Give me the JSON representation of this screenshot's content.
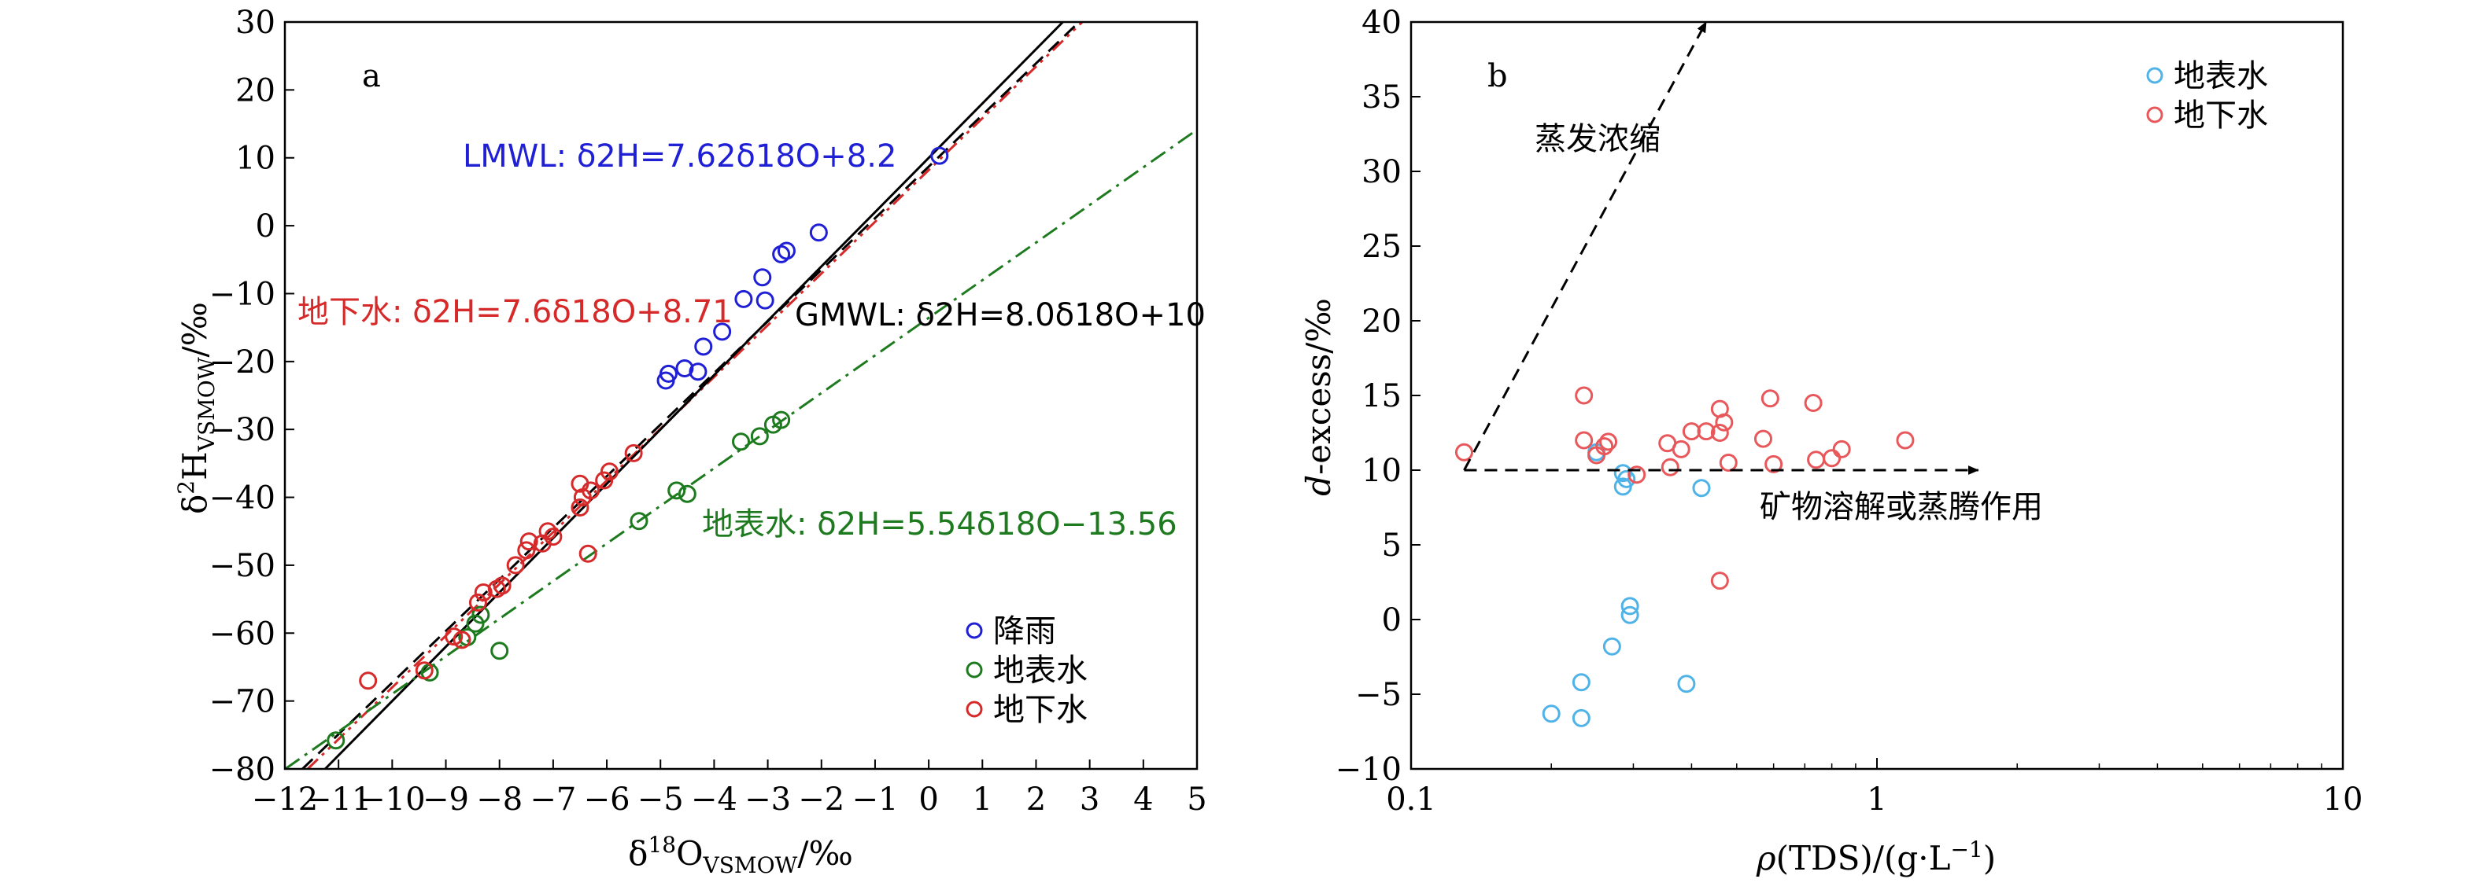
{
  "chart_data": [
    {
      "type": "scatter",
      "panel_label": "a",
      "xlabel": "δ18OVSMOW/‰",
      "ylabel": "δ2HVSMOW/‰",
      "xlim": [
        -12,
        5
      ],
      "ylim": [
        -80,
        30
      ],
      "xticks": [
        -12,
        -11,
        -10,
        -9,
        -8,
        -7,
        -6,
        -5,
        -4,
        -3,
        -2,
        -1,
        0,
        1,
        2,
        3,
        4,
        5
      ],
      "yticks": [
        -80,
        -70,
        -60,
        -50,
        -40,
        -30,
        -20,
        -10,
        0,
        10,
        20,
        30
      ],
      "legend_position": "bottom-right",
      "series": [
        {
          "name": "降雨",
          "color": "#1f1fd6",
          "points": [
            [
              -4.9,
              -22.8
            ],
            [
              -4.85,
              -21.8
            ],
            [
              -4.55,
              -21.0
            ],
            [
              -4.3,
              -21.5
            ],
            [
              -4.2,
              -17.8
            ],
            [
              -3.85,
              -15.6
            ],
            [
              -3.45,
              -10.8
            ],
            [
              -3.1,
              -7.6
            ],
            [
              -3.05,
              -11.0
            ],
            [
              -2.75,
              -4.2
            ],
            [
              -2.65,
              -3.7
            ],
            [
              -2.05,
              -1.0
            ],
            [
              0.2,
              10.3
            ]
          ]
        },
        {
          "name": "地表水",
          "color": "#1e7a1e",
          "points": [
            [
              -11.05,
              -75.8
            ],
            [
              -9.3,
              -65.8
            ],
            [
              -8.6,
              -60.6
            ],
            [
              -8.45,
              -58.6
            ],
            [
              -8.35,
              -57.3
            ],
            [
              -8.0,
              -62.6
            ],
            [
              -5.4,
              -43.5
            ],
            [
              -4.7,
              -39.0
            ],
            [
              -4.5,
              -39.5
            ],
            [
              -3.5,
              -31.8
            ],
            [
              -3.15,
              -31.0
            ],
            [
              -2.9,
              -29.3
            ],
            [
              -2.75,
              -28.6
            ]
          ]
        },
        {
          "name": "地下水",
          "color": "#d62a2a",
          "points": [
            [
              -10.45,
              -67.0
            ],
            [
              -9.4,
              -65.5
            ],
            [
              -8.85,
              -60.5
            ],
            [
              -8.7,
              -61.0
            ],
            [
              -8.4,
              -55.5
            ],
            [
              -8.3,
              -54.0
            ],
            [
              -8.05,
              -53.5
            ],
            [
              -7.95,
              -53.0
            ],
            [
              -7.7,
              -50.0
            ],
            [
              -7.5,
              -47.8
            ],
            [
              -7.45,
              -46.5
            ],
            [
              -7.2,
              -46.8
            ],
            [
              -7.1,
              -45.0
            ],
            [
              -7.0,
              -45.8
            ],
            [
              -6.5,
              -41.5
            ],
            [
              -6.5,
              -38.0
            ],
            [
              -6.45,
              -40.0
            ],
            [
              -6.35,
              -48.3
            ],
            [
              -6.3,
              -39.0
            ],
            [
              -6.05,
              -37.5
            ],
            [
              -5.95,
              -36.2
            ],
            [
              -5.5,
              -33.5
            ]
          ]
        }
      ],
      "lines": [
        {
          "label": "LMWL: δ2H=7.62δ18O+8.2",
          "slope": 7.62,
          "intercept": 8.2,
          "color": "#d62a2a",
          "style": "dashdotdot",
          "label_color": "#1f1fd6"
        },
        {
          "label": "GMWL: δ2H=8.0δ18O+10",
          "slope": 8.0,
          "intercept": 10,
          "color": "#000000",
          "style": "solid",
          "label_color": "#000000"
        },
        {
          "label": "地下水: δ2H=7.6δ18O+8.71",
          "slope": 7.6,
          "intercept": 8.71,
          "color": "#000000",
          "style": "dashed",
          "label_color": "#d62a2a"
        },
        {
          "label": "地表水: δ2H=5.54δ18O−13.56",
          "slope": 5.54,
          "intercept": -13.56,
          "color": "#1e7a1e",
          "style": "dashdot",
          "label_color": "#1e7a1e"
        }
      ]
    },
    {
      "type": "scatter",
      "panel_label": "b",
      "xlabel": "ρ(TDS)/(g·L−1)",
      "ylabel": "d-excess/‰",
      "xscale": "log",
      "xlim": [
        0.1,
        10
      ],
      "ylim": [
        -10,
        40
      ],
      "xticks": [
        0.1,
        1,
        10
      ],
      "xtick_labels": [
        "0.1",
        "1",
        "10"
      ],
      "yticks": [
        -10,
        -5,
        0,
        5,
        10,
        15,
        20,
        25,
        30,
        35,
        40
      ],
      "legend_position": "top-right",
      "series": [
        {
          "name": "地表水",
          "color": "#4fb3e8",
          "points": [
            [
              0.2,
              -6.3
            ],
            [
              0.232,
              -6.6
            ],
            [
              0.232,
              -4.2
            ],
            [
              0.27,
              -1.8
            ],
            [
              0.295,
              0.3
            ],
            [
              0.295,
              0.9
            ],
            [
              0.285,
              8.9
            ],
            [
              0.29,
              9.4
            ],
            [
              0.285,
              9.8
            ],
            [
              0.39,
              -4.3
            ],
            [
              0.42,
              8.8
            ],
            [
              0.25,
              11.2
            ]
          ]
        },
        {
          "name": "地下水",
          "color": "#e8575a",
          "points": [
            [
              0.13,
              11.2
            ],
            [
              0.235,
              15.0
            ],
            [
              0.235,
              12.0
            ],
            [
              0.25,
              11.0
            ],
            [
              0.26,
              11.6
            ],
            [
              0.265,
              11.9
            ],
            [
              0.305,
              9.7
            ],
            [
              0.355,
              11.8
            ],
            [
              0.36,
              10.2
            ],
            [
              0.38,
              11.4
            ],
            [
              0.4,
              12.6
            ],
            [
              0.43,
              12.6
            ],
            [
              0.46,
              14.1
            ],
            [
              0.47,
              13.2
            ],
            [
              0.46,
              12.5
            ],
            [
              0.48,
              10.5
            ],
            [
              0.46,
              2.6
            ],
            [
              0.57,
              12.1
            ],
            [
              0.59,
              14.8
            ],
            [
              0.6,
              10.4
            ],
            [
              0.73,
              14.5
            ],
            [
              0.74,
              10.7
            ],
            [
              0.8,
              10.8
            ],
            [
              0.84,
              11.4
            ],
            [
              1.15,
              12.0
            ]
          ]
        }
      ],
      "arrows": [
        {
          "label": "蒸发浓缩",
          "from": [
            0.13,
            10
          ],
          "to": [
            0.43,
            40
          ]
        },
        {
          "label": "矿物溶解或蒸腾作用",
          "from": [
            0.13,
            10
          ],
          "to": [
            1.65,
            10
          ]
        }
      ]
    }
  ]
}
